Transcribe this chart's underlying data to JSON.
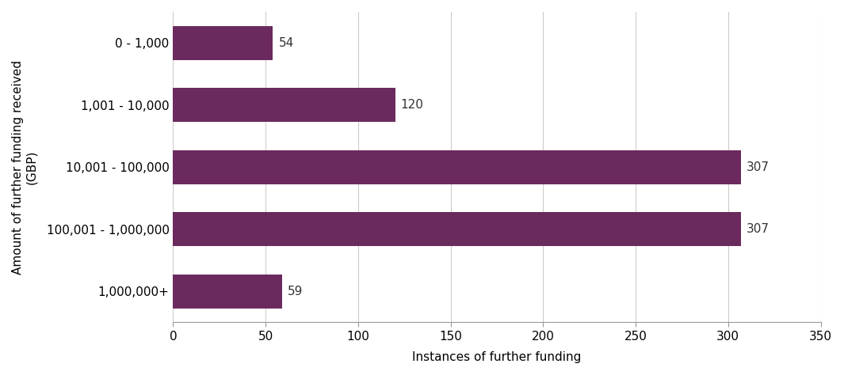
{
  "categories": [
    "0 - 1,000",
    "1,001 - 10,000",
    "10,001 - 100,000",
    "100,001 - 1,000,000",
    "1,000,000+"
  ],
  "values": [
    54,
    120,
    307,
    307,
    59
  ],
  "bar_color": "#6B2A5E",
  "xlabel": "Instances of further funding",
  "ylabel": "Amount of further funding received\n(GBP)",
  "xlim": [
    0,
    350
  ],
  "xticks": [
    0,
    50,
    100,
    150,
    200,
    250,
    300,
    350
  ],
  "background_color": "#ffffff",
  "grid_color": "#cccccc",
  "label_fontsize": 11,
  "tick_fontsize": 11,
  "bar_label_fontsize": 11,
  "bar_label_color": "#333333"
}
